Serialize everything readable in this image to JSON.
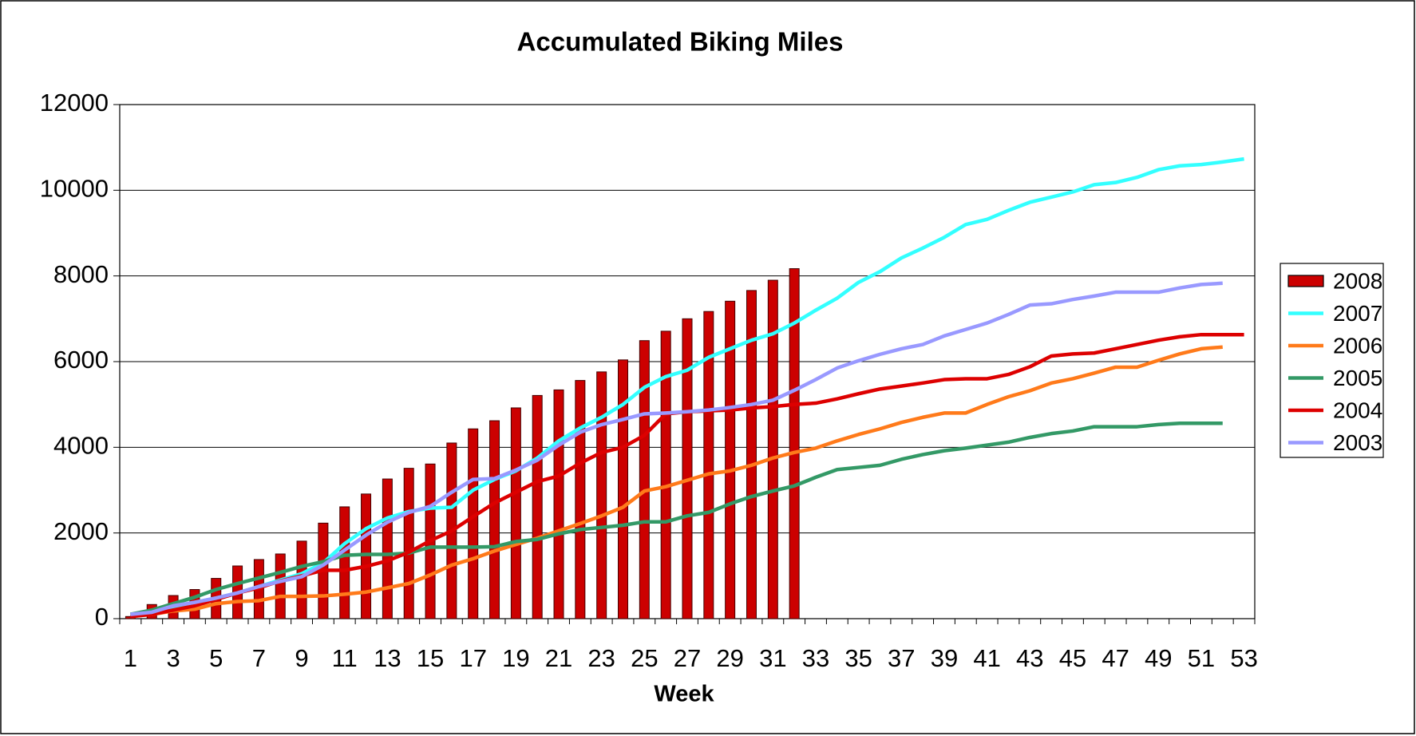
{
  "chart_data": {
    "type": "combo",
    "title": "Accumulated Biking Miles",
    "x_label": "Week",
    "categories": [
      "1",
      null,
      "3",
      null,
      "5",
      null,
      "7",
      null,
      "9",
      null,
      "11",
      null,
      "13",
      null,
      "15",
      null,
      "17",
      null,
      "19",
      null,
      "21",
      null,
      "23",
      null,
      "25",
      null,
      "27",
      null,
      "29",
      null,
      "31",
      null,
      "33",
      null,
      "35",
      null,
      "37",
      null,
      "39",
      null,
      "41",
      null,
      "43",
      null,
      "45",
      null,
      "47",
      null,
      "49",
      null,
      "51",
      null,
      "53"
    ],
    "ylim": [
      0,
      12000
    ],
    "yticks": [
      0,
      2000,
      4000,
      6000,
      8000,
      10000,
      12000
    ],
    "grid": true,
    "legend": "right",
    "series": [
      {
        "name": "2008",
        "type": "bar",
        "color": "#cc0000",
        "values": [
          50,
          330,
          540,
          680,
          940,
          1230,
          1380,
          1510,
          1810,
          2230,
          2610,
          2910,
          3260,
          3510,
          3610,
          4100,
          4430,
          4620,
          4920,
          5210,
          5340,
          5560,
          5760,
          6040,
          6490,
          6710,
          7000,
          7170,
          7410,
          7660,
          7900,
          8170,
          null,
          null,
          null,
          null,
          null,
          null,
          null,
          null,
          null,
          null,
          null,
          null,
          null,
          null,
          null,
          null,
          null,
          null,
          null,
          null,
          null
        ]
      },
      {
        "name": "2007",
        "type": "line",
        "color": "#33ffff",
        "values": [
          100,
          150,
          280,
          380,
          480,
          600,
          750,
          900,
          1050,
          1300,
          1750,
          2100,
          2350,
          2500,
          2580,
          2600,
          3000,
          3250,
          3450,
          3750,
          4150,
          4450,
          4700,
          5000,
          5400,
          5650,
          5800,
          6100,
          6300,
          6500,
          6650,
          6900,
          7200,
          7480,
          7850,
          8100,
          8420,
          8650,
          8900,
          9200,
          9320,
          9530,
          9720,
          9840,
          9960,
          10130,
          10180,
          10300,
          10480,
          10570,
          10600,
          10660,
          10730
        ]
      },
      {
        "name": "2006",
        "type": "line",
        "color": "#ff7a1a",
        "values": [
          50,
          100,
          180,
          220,
          350,
          400,
          420,
          520,
          520,
          530,
          570,
          620,
          720,
          820,
          1020,
          1250,
          1400,
          1580,
          1730,
          1880,
          2050,
          2220,
          2400,
          2600,
          2980,
          3080,
          3230,
          3380,
          3450,
          3580,
          3750,
          3880,
          3980,
          4150,
          4300,
          4430,
          4580,
          4700,
          4800,
          4800,
          5000,
          5180,
          5320,
          5500,
          5600,
          5730,
          5870,
          5870,
          6030,
          6180,
          6300,
          6340,
          null
        ]
      },
      {
        "name": "2005",
        "type": "line",
        "color": "#339966",
        "values": [
          100,
          200,
          350,
          500,
          680,
          820,
          950,
          1080,
          1220,
          1330,
          1480,
          1500,
          1500,
          1530,
          1670,
          1670,
          1670,
          1680,
          1800,
          1850,
          1980,
          2080,
          2130,
          2180,
          2260,
          2260,
          2400,
          2480,
          2680,
          2850,
          2980,
          3100,
          3300,
          3480,
          3530,
          3580,
          3720,
          3830,
          3920,
          3980,
          4050,
          4120,
          4230,
          4320,
          4380,
          4480,
          4480,
          4480,
          4530,
          4560,
          4560,
          4560,
          null
        ]
      },
      {
        "name": "2004",
        "type": "line",
        "color": "#dd0000",
        "values": [
          50,
          100,
          200,
          300,
          450,
          600,
          720,
          880,
          1000,
          1130,
          1130,
          1220,
          1350,
          1550,
          1820,
          2050,
          2380,
          2700,
          2950,
          3200,
          3330,
          3630,
          3880,
          4000,
          4280,
          4780,
          4830,
          4850,
          4870,
          4920,
          4950,
          5000,
          5030,
          5130,
          5250,
          5360,
          5430,
          5500,
          5580,
          5600,
          5600,
          5700,
          5880,
          6130,
          6180,
          6200,
          6300,
          6400,
          6500,
          6580,
          6630,
          6630,
          6630
        ]
      },
      {
        "name": "2003",
        "type": "line",
        "color": "#9999ff",
        "values": [
          100,
          150,
          300,
          380,
          480,
          600,
          750,
          870,
          980,
          1250,
          1600,
          1950,
          2250,
          2480,
          2620,
          2950,
          3250,
          3270,
          3470,
          3700,
          4050,
          4350,
          4530,
          4650,
          4780,
          4800,
          4830,
          4870,
          4930,
          5000,
          5100,
          5330,
          5580,
          5850,
          6020,
          6170,
          6300,
          6400,
          6600,
          6750,
          6900,
          7100,
          7320,
          7350,
          7450,
          7530,
          7620,
          7620,
          7620,
          7720,
          7800,
          7830,
          null
        ]
      }
    ]
  }
}
